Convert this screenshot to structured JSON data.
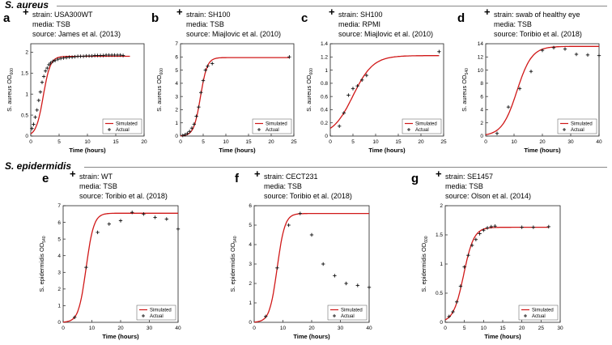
{
  "species": [
    {
      "name": "S. aureus",
      "panels": [
        "a",
        "b",
        "c",
        "d"
      ]
    },
    {
      "name": "S. epidermidis",
      "panels": [
        "e",
        "f",
        "g"
      ]
    }
  ],
  "chart_data": [
    {
      "id": "a",
      "type": "line",
      "meta": {
        "strain": "strain: USA300WT",
        "media": "media: TSB",
        "source": "source: James et al. (2013)"
      },
      "xlabel": "Time (hours)",
      "ylabel": "S. aureus OD",
      "ylabel_sub": "600",
      "xlim": [
        0,
        20
      ],
      "ylim": [
        0,
        2.2
      ],
      "xticks": [
        0,
        5,
        10,
        15,
        20
      ],
      "yticks": [
        0,
        0.5,
        1,
        1.5,
        2
      ],
      "xtick_labels": [
        "0",
        "5",
        "10",
        "15",
        "20"
      ],
      "ytick_labels": [
        "0",
        "0.5",
        "1",
        "1.5",
        "2"
      ],
      "sim": {
        "A": 1.9,
        "k": 1.6,
        "t0": 2.2,
        "tmin": 0,
        "tmax": 17.5
      },
      "actual": [
        [
          0.2,
          0.18
        ],
        [
          0.5,
          0.28
        ],
        [
          0.8,
          0.45
        ],
        [
          1.1,
          0.62
        ],
        [
          1.4,
          0.85
        ],
        [
          1.7,
          1.05
        ],
        [
          2.0,
          1.28
        ],
        [
          2.3,
          1.42
        ],
        [
          2.6,
          1.55
        ],
        [
          2.9,
          1.62
        ],
        [
          3.2,
          1.7
        ],
        [
          3.5,
          1.74
        ],
        [
          3.9,
          1.78
        ],
        [
          4.3,
          1.8
        ],
        [
          4.8,
          1.83
        ],
        [
          5.3,
          1.85
        ],
        [
          5.8,
          1.86
        ],
        [
          6.3,
          1.87
        ],
        [
          6.8,
          1.88
        ],
        [
          7.3,
          1.88
        ],
        [
          7.8,
          1.89
        ],
        [
          8.3,
          1.9
        ],
        [
          8.8,
          1.9
        ],
        [
          9.3,
          1.9
        ],
        [
          9.8,
          1.91
        ],
        [
          10.3,
          1.91
        ],
        [
          10.8,
          1.91
        ],
        [
          11.3,
          1.92
        ],
        [
          11.8,
          1.92
        ],
        [
          12.3,
          1.92
        ],
        [
          12.8,
          1.92
        ],
        [
          13.3,
          1.93
        ],
        [
          13.8,
          1.93
        ],
        [
          14.3,
          1.93
        ],
        [
          14.8,
          1.93
        ],
        [
          15.3,
          1.93
        ],
        [
          15.8,
          1.93
        ],
        [
          16.3,
          1.92
        ]
      ],
      "legend": {
        "simulated": "Simulated",
        "actual": "Actual",
        "position": "bottom-right"
      }
    },
    {
      "id": "b",
      "type": "line",
      "meta": {
        "strain": "strain: SH100",
        "media": "media: TSB",
        "source": "source: Miajlovic et al. (2010)"
      },
      "xlabel": "Time (hours)",
      "ylabel": "S. aureus OD",
      "ylabel_sub": "600",
      "xlim": [
        0,
        25
      ],
      "ylim": [
        0,
        7
      ],
      "xticks": [
        0,
        5,
        10,
        15,
        20,
        25
      ],
      "yticks": [
        0,
        1,
        2,
        3,
        4,
        5,
        6,
        7
      ],
      "xtick_labels": [
        "0",
        "5",
        "10",
        "15",
        "20",
        "25"
      ],
      "ytick_labels": [
        "0",
        "1",
        "2",
        "3",
        "4",
        "5",
        "6",
        "7"
      ],
      "sim": {
        "A": 5.95,
        "k": 1.35,
        "t0": 4.4,
        "tmin": 0,
        "tmax": 24
      },
      "actual": [
        [
          0.5,
          0.05
        ],
        [
          1,
          0.1
        ],
        [
          1.5,
          0.2
        ],
        [
          2,
          0.35
        ],
        [
          2.5,
          0.6
        ],
        [
          3,
          0.9
        ],
        [
          3.5,
          1.5
        ],
        [
          4,
          2.2
        ],
        [
          4.5,
          3.3
        ],
        [
          5,
          4.2
        ],
        [
          5.5,
          5.0
        ],
        [
          6,
          5.3
        ],
        [
          7,
          5.5
        ],
        [
          24,
          6.0
        ]
      ],
      "legend": {
        "simulated": "Simulated",
        "actual": "Actual",
        "position": "bottom-right"
      }
    },
    {
      "id": "c",
      "type": "line",
      "meta": {
        "strain": "strain: SH100",
        "media": "media: RPMI",
        "source": "source: Miajlovic et al. (2010)"
      },
      "xlabel": "Time (hours)",
      "ylabel": "S. aureus OD",
      "ylabel_sub": "600",
      "xlim": [
        0,
        25
      ],
      "ylim": [
        0,
        1.4
      ],
      "xticks": [
        0,
        5,
        10,
        15,
        20,
        25
      ],
      "yticks": [
        0,
        0.2,
        0.4,
        0.6,
        0.8,
        1,
        1.2,
        1.4
      ],
      "xtick_labels": [
        "0",
        "5",
        "10",
        "15",
        "20",
        "25"
      ],
      "ytick_labels": [
        "0",
        "0.2",
        "0.4",
        "0.6",
        "0.8",
        "1",
        "1.2",
        "1.4"
      ],
      "sim": {
        "A": 1.22,
        "k": 0.45,
        "t0": 5.0,
        "tmin": 0,
        "tmax": 24
      },
      "actual": [
        [
          2,
          0.15
        ],
        [
          3,
          0.35
        ],
        [
          4,
          0.62
        ],
        [
          5,
          0.72
        ],
        [
          6,
          0.76
        ],
        [
          7,
          0.85
        ],
        [
          8,
          0.92
        ],
        [
          24,
          1.28
        ]
      ],
      "legend": {
        "simulated": "Simulated",
        "actual": "Actual",
        "position": "bottom-right"
      }
    },
    {
      "id": "d",
      "type": "line",
      "meta": {
        "strain": "strain: swab of healthy eye",
        "media": "media: TSB",
        "source": "source: Toribio et al. (2018)"
      },
      "xlabel": "Time (hours)",
      "ylabel": "S. aureus OD",
      "ylabel_sub": "540",
      "xlim": [
        0,
        40
      ],
      "ylim": [
        0,
        14
      ],
      "xticks": [
        0,
        10,
        20,
        30,
        40
      ],
      "yticks": [
        0,
        2,
        4,
        6,
        8,
        10,
        12,
        14
      ],
      "xtick_labels": [
        "0",
        "10",
        "20",
        "30",
        "40"
      ],
      "ytick_labels": [
        "0",
        "2",
        "4",
        "6",
        "8",
        "10",
        "12",
        "14"
      ],
      "sim": {
        "A": 13.6,
        "k": 0.38,
        "t0": 11.0,
        "tmin": 0,
        "tmax": 40
      },
      "actual": [
        [
          4,
          0.4
        ],
        [
          8,
          4.4
        ],
        [
          12,
          7.2
        ],
        [
          16,
          9.8
        ],
        [
          20,
          13.0
        ],
        [
          24,
          13.4
        ],
        [
          28,
          13.2
        ],
        [
          32,
          12.4
        ],
        [
          36,
          12.3
        ],
        [
          40,
          12.2
        ]
      ],
      "legend": {
        "simulated": "Simulated",
        "actual": "Actual",
        "position": "bottom-right"
      }
    },
    {
      "id": "e",
      "type": "line",
      "meta": {
        "strain": "strain: WT",
        "media": "media: TSB",
        "source": "source: Toribio et al. (2018)"
      },
      "xlabel": "Time (hours)",
      "ylabel": "S. epidermidis OD",
      "ylabel_sub": "540",
      "xlim": [
        0,
        40
      ],
      "ylim": [
        0,
        7
      ],
      "xticks": [
        0,
        10,
        20,
        30,
        40
      ],
      "yticks": [
        0,
        1,
        2,
        3,
        4,
        5,
        6,
        7
      ],
      "xtick_labels": [
        "0",
        "10",
        "20",
        "30",
        "40"
      ],
      "ytick_labels": [
        "0",
        "1",
        "2",
        "3",
        "4",
        "5",
        "6",
        "7"
      ],
      "sim": {
        "A": 6.55,
        "k": 0.75,
        "t0": 8.0,
        "tmin": 0,
        "tmax": 40
      },
      "actual": [
        [
          4,
          0.3
        ],
        [
          8,
          3.3
        ],
        [
          12,
          5.4
        ],
        [
          16,
          5.9
        ],
        [
          20,
          6.1
        ],
        [
          24,
          6.6
        ],
        [
          28,
          6.5
        ],
        [
          32,
          6.3
        ],
        [
          36,
          6.2
        ],
        [
          40,
          5.6
        ]
      ],
      "legend": {
        "simulated": "Simulated",
        "actual": "Actual",
        "position": "bottom-right"
      }
    },
    {
      "id": "f",
      "type": "line",
      "meta": {
        "strain": "strain: CECT231",
        "media": "media: TSB",
        "source": "source: Toribio et al. (2018)"
      },
      "xlabel": "Time (hours)",
      "ylabel": "S. epidermidis OD",
      "ylabel_sub": "540",
      "xlim": [
        0,
        40
      ],
      "ylim": [
        0,
        6
      ],
      "xticks": [
        0,
        10,
        20,
        30,
        40
      ],
      "yticks": [
        0,
        1,
        2,
        3,
        4,
        5,
        6
      ],
      "xtick_labels": [
        "0",
        "10",
        "20",
        "30",
        "40"
      ],
      "ytick_labels": [
        "0",
        "1",
        "2",
        "3",
        "4",
        "5",
        "6"
      ],
      "sim": {
        "A": 5.6,
        "k": 0.75,
        "t0": 8.0,
        "tmin": 0,
        "tmax": 40
      },
      "actual": [
        [
          4,
          0.3
        ],
        [
          8,
          2.8
        ],
        [
          12,
          5.0
        ],
        [
          16,
          5.6
        ],
        [
          20,
          4.5
        ],
        [
          24,
          3.0
        ],
        [
          28,
          2.4
        ],
        [
          32,
          2.0
        ],
        [
          36,
          1.9
        ],
        [
          40,
          1.8
        ]
      ],
      "legend": {
        "simulated": "Simulated",
        "actual": "Actual",
        "position": "bottom-right"
      }
    },
    {
      "id": "g",
      "type": "line",
      "meta": {
        "strain": "strain: SE1457",
        "media": "media: TSB",
        "source": "source: Olson et al. (2014)"
      },
      "xlabel": "Time (hours)",
      "ylabel": "S. epidermidis OD",
      "ylabel_sub": "600",
      "xlim": [
        0,
        30
      ],
      "ylim": [
        0,
        2
      ],
      "xticks": [
        0,
        5,
        10,
        15,
        20,
        25,
        30
      ],
      "yticks": [
        0,
        0.5,
        1,
        1.5,
        2
      ],
      "xtick_labels": [
        "0",
        "5",
        "10",
        "15",
        "20",
        "25",
        "30"
      ],
      "ytick_labels": [
        "0",
        "0.5",
        "1",
        "1.5",
        "2"
      ],
      "sim": {
        "A": 1.63,
        "k": 0.75,
        "t0": 4.8,
        "tmin": 0,
        "tmax": 27
      },
      "actual": [
        [
          1,
          0.1
        ],
        [
          2,
          0.18
        ],
        [
          3,
          0.35
        ],
        [
          4,
          0.62
        ],
        [
          5,
          0.95
        ],
        [
          6,
          1.15
        ],
        [
          7,
          1.32
        ],
        [
          8,
          1.42
        ],
        [
          9,
          1.52
        ],
        [
          10,
          1.58
        ],
        [
          11,
          1.62
        ],
        [
          12,
          1.64
        ],
        [
          13,
          1.65
        ],
        [
          20,
          1.63
        ],
        [
          23,
          1.63
        ],
        [
          27,
          1.64
        ]
      ],
      "legend": {
        "simulated": "Simulated",
        "actual": "Actual",
        "position": "bottom-right"
      }
    }
  ]
}
